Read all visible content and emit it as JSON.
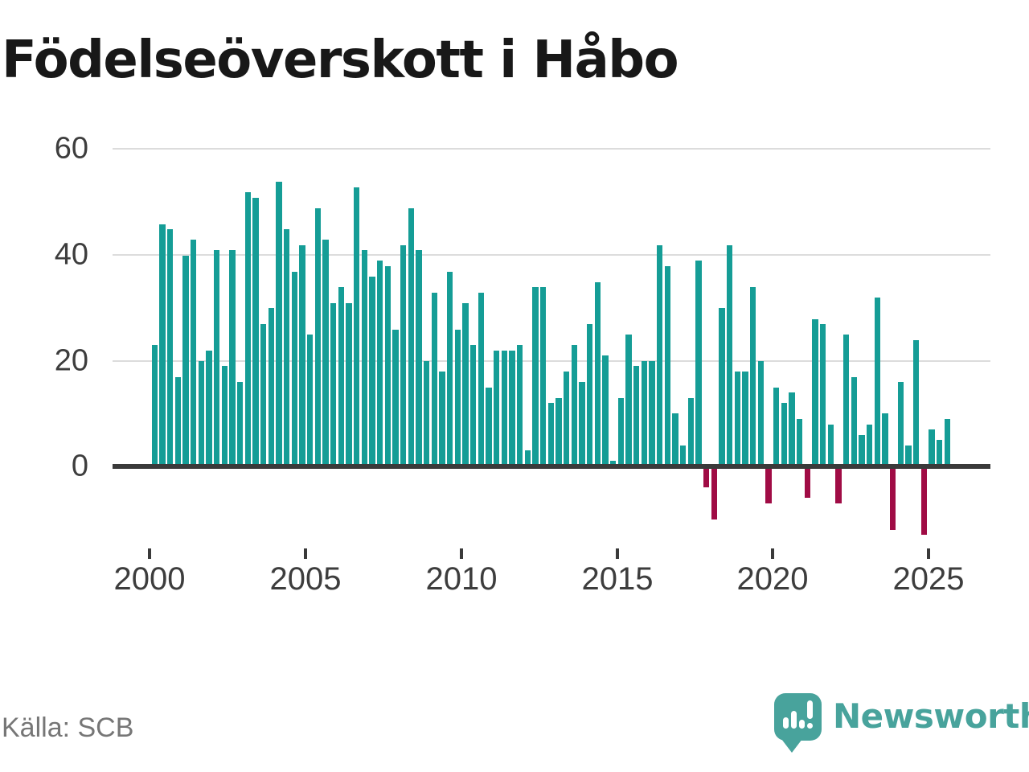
{
  "title": "Födelseöverskott i Håbo",
  "source": "Källa: SCB",
  "logo": {
    "brand": "Newsworthy"
  },
  "colors": {
    "positive_bar": "#159d96",
    "negative_bar": "#a00c45",
    "gridline": "#dcdcdc",
    "axis_line": "#3a3a3a",
    "text": "#3d3d3d",
    "title_text": "#181818",
    "source_text": "#767676",
    "logo_teal": "#48a39c"
  },
  "chart_data": {
    "type": "bar",
    "title": "Födelseöverskott i Håbo",
    "xlabel": "",
    "ylabel": "",
    "period": "quarterly",
    "start": "2000Q1",
    "end": "2025Q3",
    "grid": "horizontal",
    "legend": "none",
    "y_ticks": [
      0,
      20,
      40,
      60
    ],
    "ylim": [
      -15,
      62
    ],
    "x_tick_years": [
      "2000",
      "2005",
      "2010",
      "2015",
      "2020",
      "2025"
    ],
    "series": [
      {
        "name": "Födelseöverskott",
        "values": [
          23,
          46,
          45,
          17,
          40,
          43,
          20,
          22,
          41,
          19,
          41,
          16,
          52,
          51,
          27,
          30,
          54,
          45,
          37,
          42,
          25,
          49,
          43,
          31,
          34,
          31,
          53,
          41,
          36,
          39,
          38,
          26,
          42,
          49,
          41,
          20,
          33,
          18,
          37,
          26,
          31,
          23,
          33,
          15,
          22,
          22,
          22,
          23,
          3,
          34,
          34,
          12,
          13,
          18,
          23,
          16,
          27,
          35,
          21,
          1,
          13,
          25,
          19,
          20,
          20,
          42,
          38,
          10,
          4,
          13,
          39,
          -4,
          -10,
          30,
          42,
          18,
          18,
          34,
          20,
          -7,
          15,
          12,
          14,
          9,
          -6,
          28,
          27,
          8,
          -7,
          25,
          17,
          6,
          8,
          32,
          10,
          -12,
          16,
          4,
          24,
          -13,
          7,
          5,
          9
        ]
      }
    ]
  }
}
